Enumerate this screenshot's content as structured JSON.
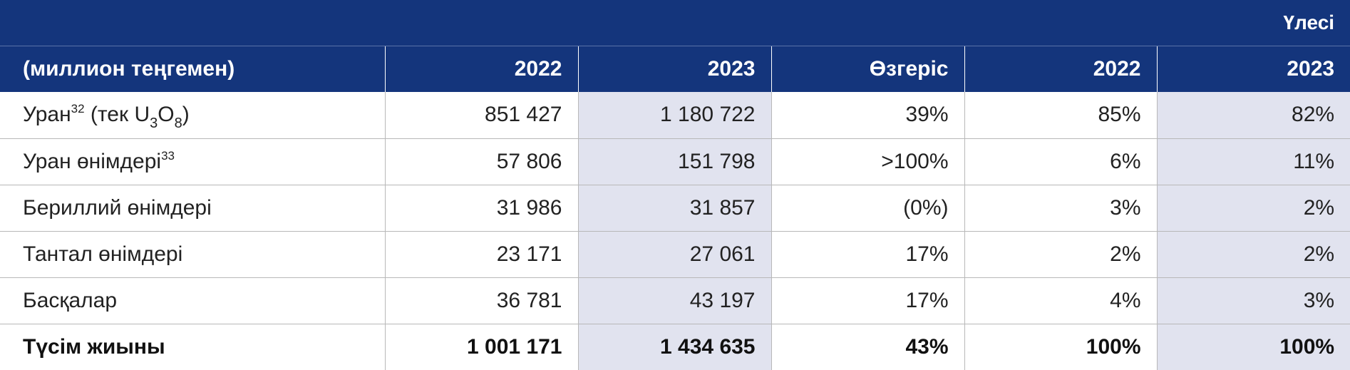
{
  "share_header": "Үлесі",
  "columns": {
    "label": "(миллион теңгемен)",
    "y2022": "2022",
    "y2023": "2023",
    "change": "Өзгеріс",
    "share2022": "2022",
    "share2023": "2023"
  },
  "rows": [
    {
      "label_main": "Уран",
      "label_sup": "32",
      "label_paren_open": " (тек U",
      "label_sub1": "3",
      "label_o": "O",
      "label_sub2": "8",
      "label_paren_close": ")",
      "y2022": "851 427",
      "y2023": "1 180 722",
      "change": "39%",
      "share2022": "85%",
      "share2023": "82%"
    },
    {
      "label_main": "Уран өнімдері",
      "label_sup": "33",
      "y2022": "57 806",
      "y2023": "151 798",
      "change": ">100%",
      "share2022": "6%",
      "share2023": "11%"
    },
    {
      "label_main": "Бериллий өнімдері",
      "y2022": "31 986",
      "y2023": "31 857",
      "change": "(0%)",
      "share2022": "3%",
      "share2023": "2%"
    },
    {
      "label_main": "Тантал өнімдері",
      "y2022": "23 171",
      "y2023": "27 061",
      "change": "17%",
      "share2022": "2%",
      "share2023": "2%"
    },
    {
      "label_main": "Басқалар",
      "y2022": "36 781",
      "y2023": "43 197",
      "change": "17%",
      "share2022": "4%",
      "share2023": "3%"
    },
    {
      "label_main": "Түсім жиыны",
      "y2022": "1 001 171",
      "y2023": "1 434 635",
      "change": "43%",
      "share2022": "100%",
      "share2023": "100%"
    }
  ],
  "colors": {
    "header_bg": "#14357c",
    "shaded_cell_bg": "#e1e3ef",
    "grid_line": "#b8b8b8"
  }
}
